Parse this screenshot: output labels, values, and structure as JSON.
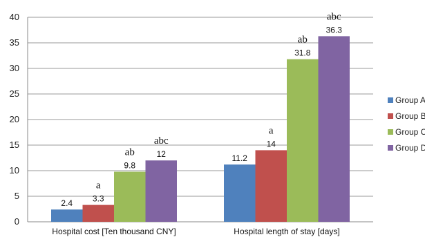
{
  "chart_data": {
    "type": "bar",
    "categories": [
      "Hospital cost [Ten thousand CNY]",
      "Hospital length of stay [days]"
    ],
    "series": [
      {
        "name": "Group A",
        "values": [
          2.4,
          11.2
        ],
        "color": "#4F81BD",
        "annotations": [
          "",
          ""
        ]
      },
      {
        "name": "Group B",
        "values": [
          3.3,
          14
        ],
        "color": "#C0504D",
        "annotations": [
          "a",
          "a"
        ]
      },
      {
        "name": "Group C",
        "values": [
          9.8,
          31.8
        ],
        "color": "#9BBB59",
        "annotations": [
          "ab",
          "ab"
        ]
      },
      {
        "name": "Group D",
        "values": [
          12,
          36.3
        ],
        "color": "#8064A2",
        "annotations": [
          "abc",
          "abc"
        ]
      }
    ],
    "ylim": [
      0,
      40
    ],
    "yticks": [
      0,
      5,
      10,
      15,
      20,
      25,
      30,
      35,
      40
    ],
    "grid": true,
    "legend_position": "right",
    "title": "",
    "xlabel": "",
    "ylabel": ""
  }
}
